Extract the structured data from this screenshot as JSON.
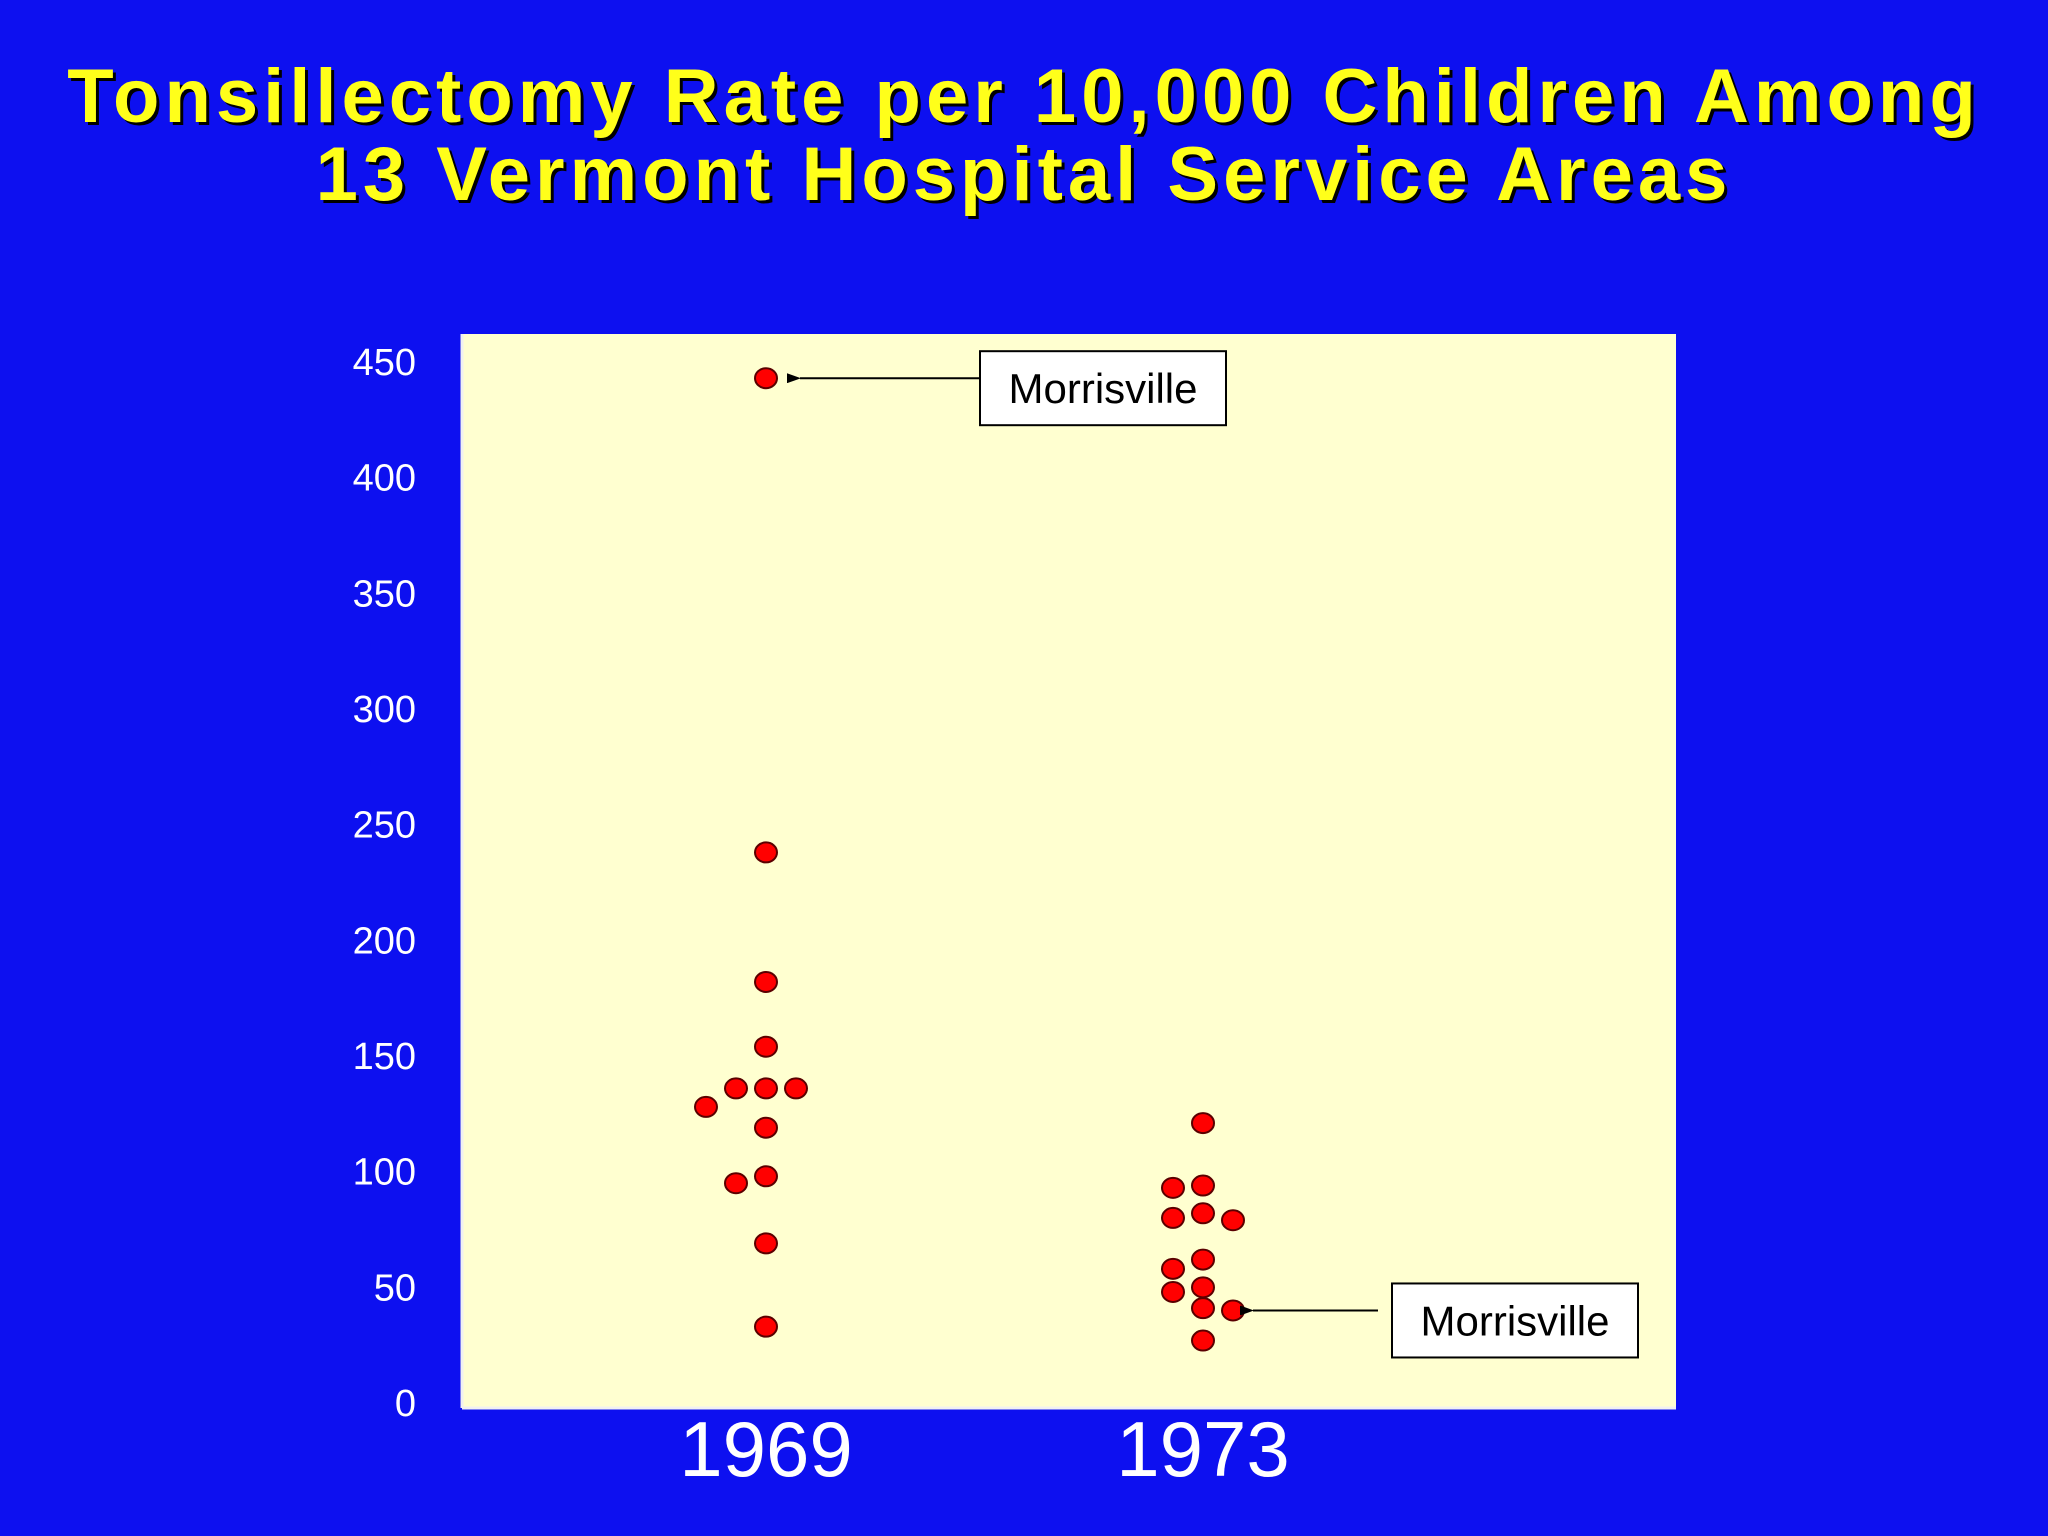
{
  "slide": {
    "title_line1": "Tonsillectomy Rate per 10,000 Children Among",
    "title_line2": "13 Vermont Hospital Service Areas"
  },
  "colors": {
    "background": "#0d10f0",
    "title": "#ffff1a",
    "plot_area": "#ffffd0",
    "point_fill": "#ff0000",
    "point_stroke": "#5a0000",
    "text": "#ffffff"
  },
  "chart_data": {
    "type": "scatter",
    "title": "Tonsillectomy Rate per 10,000 Children Among 13 Vermont Hospital Service Areas",
    "xlabel": "",
    "ylabel": "",
    "categories": [
      "1969",
      "1973"
    ],
    "ylim": [
      0,
      450
    ],
    "yticks": [
      0,
      50,
      100,
      150,
      200,
      250,
      300,
      350,
      400,
      450
    ],
    "grid": false,
    "series": [
      {
        "category": "1969",
        "values": [
          443,
          238,
          182,
          154,
          136,
          136,
          136,
          128,
          119,
          98,
          95,
          69,
          33
        ]
      },
      {
        "category": "1973",
        "values": [
          121,
          94,
          93,
          82,
          80,
          79,
          62,
          58,
          50,
          48,
          41,
          40,
          27
        ]
      }
    ],
    "annotations": [
      {
        "text": "Morrisville",
        "category": "1969",
        "value": 443
      },
      {
        "text": "Morrisville",
        "category": "1973",
        "value": 40
      }
    ]
  }
}
